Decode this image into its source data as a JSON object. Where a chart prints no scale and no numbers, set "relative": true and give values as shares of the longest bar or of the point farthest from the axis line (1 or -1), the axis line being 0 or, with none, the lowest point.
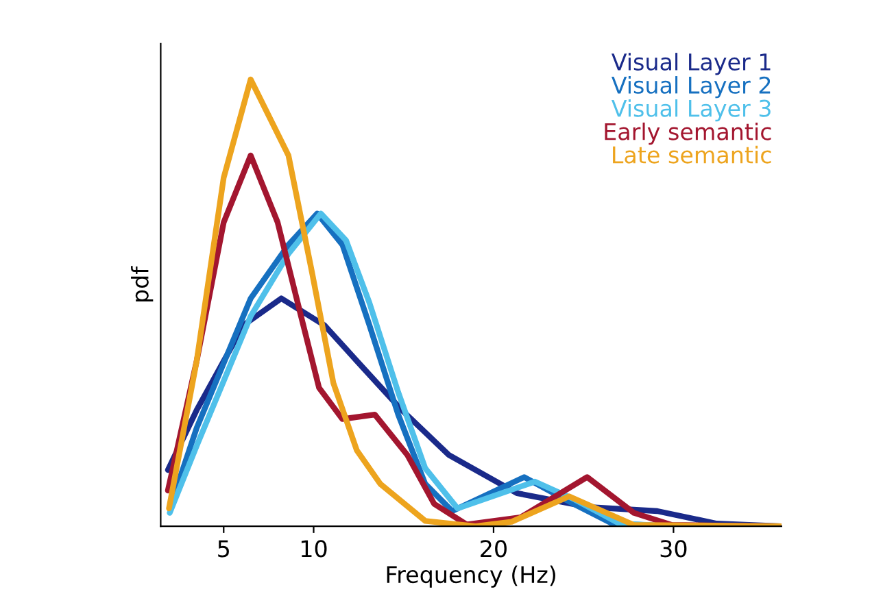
{
  "chart_data": {
    "type": "line",
    "xlabel": "Frequency (Hz)",
    "ylabel": "pdf",
    "relative": true,
    "xlim": [
      1.5,
      36
    ],
    "xticks": [
      5,
      10,
      20,
      30
    ],
    "legend": "top right",
    "grid": false,
    "marker": "none",
    "line_style": "solid",
    "series": [
      {
        "name": "Visual Layer 1",
        "color": "#1a2a8a",
        "x": [
          1.9,
          3.5,
          6.1,
          8.2,
          10.6,
          12.4,
          14.9,
          17.5,
          21.3,
          25.3,
          29.1,
          32.4,
          36
        ],
        "values": [
          0.126,
          0.26,
          0.45,
          0.51,
          0.45,
          0.37,
          0.26,
          0.16,
          0.074,
          0.043,
          0.034,
          0.006,
          0
        ]
      },
      {
        "name": "Visual Layer 2",
        "color": "#1670c0",
        "x": [
          2.0,
          3.5,
          6.5,
          8.6,
          10.2,
          11.6,
          13.1,
          14.7,
          16.2,
          17.7,
          21.7,
          24.3,
          26.6,
          30,
          36
        ],
        "values": [
          0.04,
          0.22,
          0.51,
          0.63,
          0.7,
          0.63,
          0.45,
          0.25,
          0.095,
          0.034,
          0.11,
          0.053,
          0.006,
          0,
          0
        ]
      },
      {
        "name": "Visual Layer 3",
        "color": "#4fc0ea",
        "x": [
          2.0,
          3.5,
          6.5,
          8.6,
          10.4,
          11.8,
          13.1,
          14.7,
          16.2,
          18.0,
          22.3,
          24.5,
          27,
          30,
          36
        ],
        "values": [
          0.03,
          0.18,
          0.47,
          0.61,
          0.7,
          0.64,
          0.5,
          0.3,
          0.13,
          0.04,
          0.1,
          0.06,
          0.006,
          0,
          0
        ]
      },
      {
        "name": "Early semantic",
        "color": "#a3162f",
        "x": [
          1.9,
          3.5,
          5,
          6.5,
          8.0,
          9.3,
          10.3,
          11.6,
          13.4,
          15.2,
          16.7,
          18.5,
          21.5,
          25.2,
          27.8,
          29.9,
          36
        ],
        "values": [
          0.08,
          0.37,
          0.68,
          0.83,
          0.68,
          0.47,
          0.31,
          0.24,
          0.25,
          0.16,
          0.05,
          0.004,
          0.02,
          0.11,
          0.03,
          0.003,
          0
        ]
      },
      {
        "name": "Late semantic",
        "color": "#eda41e",
        "x": [
          1.96,
          3.5,
          5,
          6.5,
          8.6,
          9.9,
          11.1,
          12.4,
          13.7,
          16.2,
          19,
          21,
          24.2,
          27.8,
          36
        ],
        "values": [
          0.04,
          0.37,
          0.78,
          1.0,
          0.83,
          0.57,
          0.32,
          0.17,
          0.095,
          0.012,
          0,
          0.01,
          0.067,
          0.003,
          0
        ]
      }
    ]
  }
}
